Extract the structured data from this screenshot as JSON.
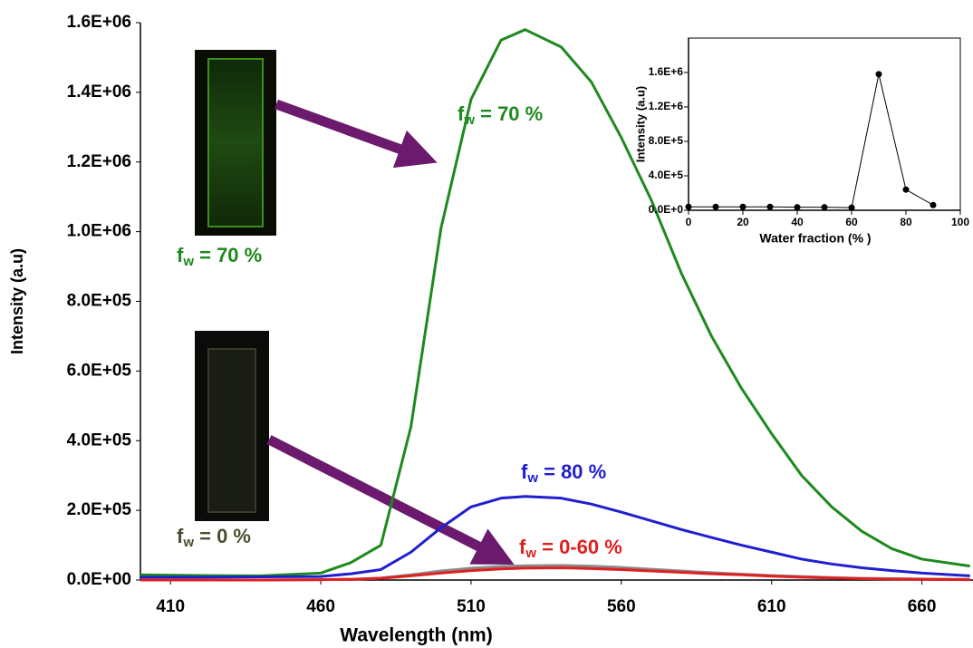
{
  "chart_data": [
    {
      "type": "line",
      "xlabel": "Wavelength  (nm)",
      "ylabel": "Intensity (a.u)",
      "x": [
        400,
        420,
        440,
        460,
        470,
        480,
        490,
        500,
        510,
        520,
        528,
        540,
        550,
        560,
        570,
        580,
        590,
        600,
        610,
        620,
        630,
        640,
        650,
        660,
        676
      ],
      "series": [
        {
          "color": "#1e8a1e",
          "values": [
            15000,
            13000,
            12000,
            20000,
            50000,
            100000,
            440000,
            1010000,
            1380000,
            1550000,
            1580000,
            1530000,
            1430000,
            1270000,
            1090000,
            880000,
            700000,
            550000,
            420000,
            300000,
            210000,
            140000,
            90000,
            60000,
            40000
          ]
        },
        {
          "color": "#1f1fd0",
          "values": [
            8000,
            8000,
            9000,
            10000,
            18000,
            30000,
            80000,
            150000,
            210000,
            235000,
            240000,
            235000,
            218000,
            195000,
            170000,
            145000,
            122000,
            100000,
            80000,
            60000,
            46000,
            35000,
            27000,
            20000,
            12000
          ]
        },
        {
          "color": "#8a8a8a",
          "values": [
            0,
            0,
            0,
            1000,
            2000,
            6000,
            15000,
            26000,
            34000,
            39000,
            41000,
            42000,
            40000,
            36000,
            31000,
            26000,
            21000,
            17000,
            13000,
            10000,
            7000,
            5000,
            4000,
            3000,
            2000
          ]
        },
        {
          "color": "#e02020",
          "values": [
            0,
            0,
            0,
            1000,
            2000,
            5000,
            12000,
            20000,
            27000,
            32000,
            34000,
            35000,
            33000,
            30000,
            26000,
            22000,
            18000,
            15000,
            11000,
            8000,
            6000,
            4000,
            3000,
            2000,
            1000
          ]
        }
      ],
      "xlim": [
        400,
        677
      ],
      "xticks": [
        410,
        460,
        510,
        560,
        610,
        660
      ],
      "ylim": [
        0,
        1600000
      ],
      "yticks": [
        {
          "value": 0,
          "label": "0.0E+00"
        },
        {
          "value": 200000,
          "label": "2.0E+05"
        },
        {
          "value": 400000,
          "label": "4.0E+05"
        },
        {
          "value": 600000,
          "label": "6.0E+05"
        },
        {
          "value": 800000,
          "label": "8.0E+05"
        },
        {
          "value": 1000000,
          "label": "1.0E+06"
        },
        {
          "value": 1200000,
          "label": "1.2E+06"
        },
        {
          "value": 1400000,
          "label": "1.4E+06"
        },
        {
          "value": 1600000,
          "label": "1.6E+06"
        }
      ],
      "annotations": [
        {
          "f": "f",
          "sub": "w",
          "rest": " = 70 %",
          "color": "#1e8a1e"
        },
        {
          "f": "f",
          "sub": "w",
          "rest": " = 80 %",
          "color": "#1f1fd0"
        },
        {
          "f": "f",
          "sub": "w",
          "rest": " = 0-60 %",
          "color": "#e02020"
        },
        {
          "f": "f",
          "sub": "w",
          "rest": " = 70 %",
          "color": "#1e8a1e"
        },
        {
          "f": "f",
          "sub": "w",
          "rest": " = 0 %",
          "color": "#4d4d30"
        }
      ]
    },
    {
      "type": "line",
      "xlabel": "Water fraction (% )",
      "ylabel": "Intensity (a.u)",
      "x": [
        0,
        10,
        20,
        30,
        40,
        50,
        60,
        70,
        80,
        90
      ],
      "series": [
        {
          "color": "#000000",
          "values": [
            40000,
            40000,
            40000,
            40000,
            35000,
            35000,
            30000,
            1580000,
            240000,
            60000
          ]
        }
      ],
      "xlim": [
        0,
        100
      ],
      "xticks": [
        0,
        20,
        40,
        60,
        80,
        100
      ],
      "ylim": [
        0,
        2000000
      ],
      "yticks": [
        {
          "value": 0,
          "label": "0.0E+0"
        },
        {
          "value": 400000,
          "label": "4.0E+5"
        },
        {
          "value": 800000,
          "label": "8.0E+5"
        },
        {
          "value": 1200000,
          "label": "1.2E+6"
        },
        {
          "value": 1600000,
          "label": "1.6E+6"
        }
      ]
    }
  ]
}
